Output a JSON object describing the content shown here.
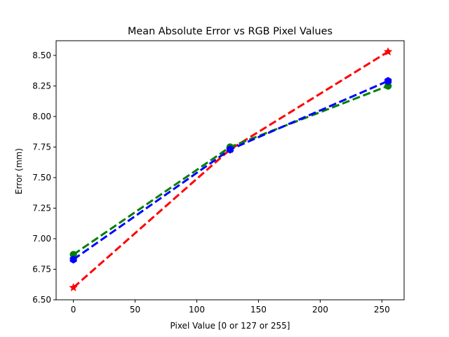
{
  "chart_data": {
    "type": "line",
    "title": "Mean Absolute Error vs RGB Pixel Values",
    "xlabel": "Pixel Value [0 or 127 or 255]",
    "ylabel": "Error (mm)",
    "xlim": [
      -14,
      268
    ],
    "ylim": [
      6.5,
      8.62
    ],
    "xticks": [
      0,
      50,
      100,
      150,
      200,
      250
    ],
    "xtick_labels": [
      "0",
      "50",
      "100",
      "150",
      "200",
      "250"
    ],
    "yticks": [
      6.5,
      6.75,
      7.0,
      7.25,
      7.5,
      7.75,
      8.0,
      8.25,
      8.5
    ],
    "ytick_labels": [
      "6.50",
      "6.75",
      "7.00",
      "7.25",
      "7.50",
      "7.75",
      "8.00",
      "8.25",
      "8.50"
    ],
    "grid": false,
    "x": [
      0,
      127,
      255
    ],
    "series": [
      {
        "color": "#ff0000",
        "marker": "star",
        "line_style": "dashed",
        "values": [
          6.6,
          7.73,
          8.53
        ]
      },
      {
        "color": "#008000",
        "marker": "circle",
        "line_style": "dashed",
        "values": [
          6.87,
          7.75,
          8.25
        ]
      },
      {
        "color": "#0000ff",
        "marker": "hexagon",
        "line_style": "dashed",
        "values": [
          6.83,
          7.73,
          8.29
        ]
      }
    ]
  }
}
